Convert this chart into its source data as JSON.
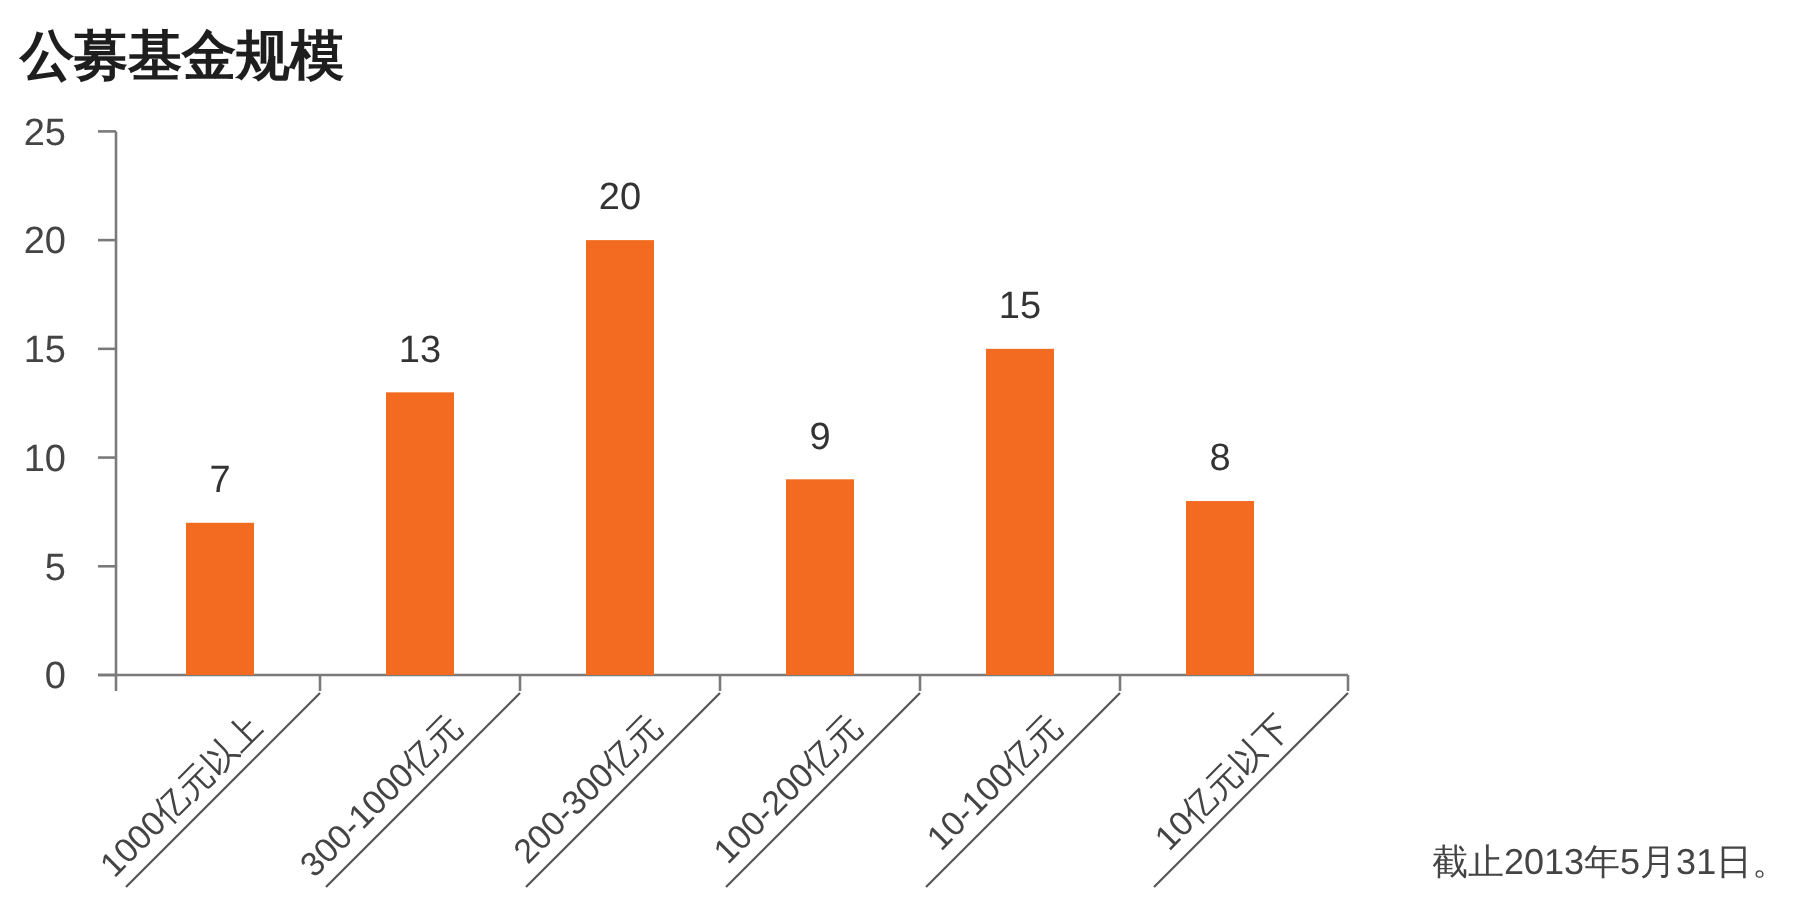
{
  "chart_data": {
    "type": "bar",
    "title": "公募基金规模",
    "categories": [
      "1000亿元以上",
      "300-1000亿元",
      "200-300亿元",
      "100-200亿元",
      "10-100亿元",
      "10亿元以下"
    ],
    "values": [
      7,
      13,
      20,
      9,
      15,
      8
    ],
    "color": "#f26b21",
    "data_labels": true,
    "ylim": [
      0,
      25
    ],
    "yticks": [
      0,
      5,
      10,
      15,
      20,
      25
    ],
    "annotations": [
      "截止2013年5月31日。"
    ]
  }
}
